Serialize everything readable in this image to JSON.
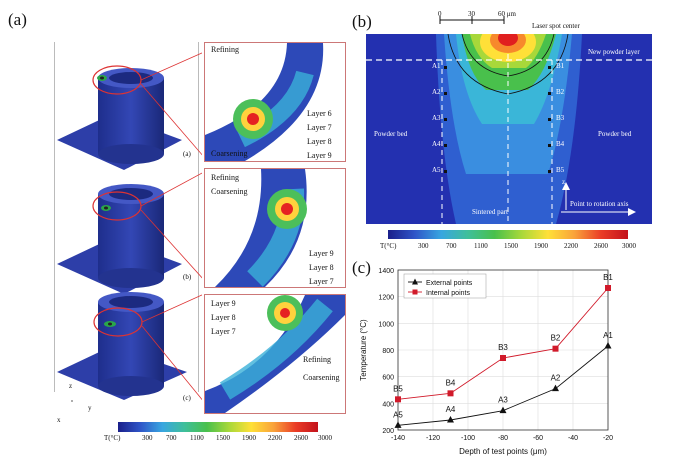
{
  "panel_labels": {
    "a": "(a)",
    "b": "(b)",
    "c": "(c)"
  },
  "panel_a": {
    "sub_labels": [
      "(a)",
      "(b)",
      "(c)"
    ],
    "zoom1": {
      "refining": "Refining",
      "coarsening": "Coarsening",
      "layers": [
        "Layer 6",
        "Layer 7",
        "Layer 8",
        "Layer 9"
      ]
    },
    "zoom2": {
      "refining": "Refining",
      "coarsening": "Coarsening",
      "layers": [
        "Layer 9",
        "Layer 8",
        "Layer 7"
      ]
    },
    "zoom3": {
      "refining": "Refining",
      "coarsening": "Coarsening",
      "layers": [
        "Layer 9",
        "Layer 8",
        "Layer 7"
      ]
    },
    "axis_x": "x",
    "axis_y": "y",
    "axis_z": "z",
    "colorbar": {
      "unit": "T(°C)",
      "ticks": [
        "300",
        "700",
        "1100",
        "1500",
        "1900",
        "2200",
        "2600",
        "3000"
      ]
    }
  },
  "panel_b": {
    "scale": {
      "ticks": [
        "0",
        "30",
        "60 μm"
      ]
    },
    "laser_spot": "Laser spot center",
    "new_powder": "New powder layer",
    "powder_bed_left": "Powder bed",
    "powder_bed_right": "Powder bed",
    "sintered": "Sintered part",
    "rotation": "Point to rotation axis",
    "z_label": "z",
    "points_a": [
      "A1",
      "A2",
      "A3",
      "A4",
      "A5"
    ],
    "points_b": [
      "B1",
      "B2",
      "B3",
      "B4",
      "B5"
    ],
    "colorbar": {
      "unit": "T(°C)",
      "ticks": [
        "300",
        "700",
        "1100",
        "1500",
        "1900",
        "2200",
        "2600",
        "3000"
      ]
    }
  },
  "chart_data": {
    "type": "line",
    "xlabel": "Depth of test points (μm)",
    "ylabel": "Temperature (°C)",
    "xlim": [
      -140,
      -20
    ],
    "ylim": [
      200,
      1400
    ],
    "xticks": [
      "-140",
      "-120",
      "-100",
      "-80",
      "-60",
      "-40",
      "-20"
    ],
    "yticks": [
      "200",
      "400",
      "600",
      "800",
      "1000",
      "1200",
      "1400"
    ],
    "x": [
      -140,
      -110,
      -80,
      -50,
      -20
    ],
    "series": [
      {
        "name": "External points",
        "color": "#111111",
        "marker": "triangle",
        "values": [
          235,
          275,
          345,
          510,
          830
        ],
        "labels": [
          "A5",
          "A4",
          "A3",
          "A2",
          "A1"
        ]
      },
      {
        "name": "Internal points",
        "color": "#d11a2a",
        "marker": "square",
        "values": [
          430,
          475,
          740,
          810,
          1265
        ],
        "labels": [
          "B5",
          "B4",
          "B3",
          "B2",
          "B1"
        ]
      }
    ],
    "legend": "top-left"
  }
}
